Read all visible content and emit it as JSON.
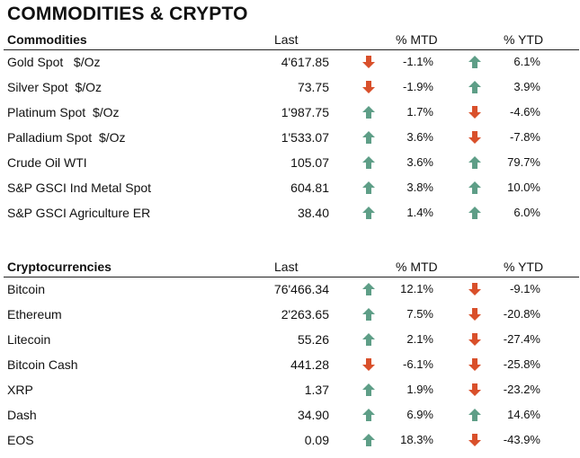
{
  "title": "COMMODITIES & CRYPTO",
  "colors": {
    "up": "#5e9e87",
    "down": "#d9502b"
  },
  "commodities": {
    "header": {
      "name": "Commodities",
      "last": "Last",
      "mtd": "% MTD",
      "ytd": "% YTD"
    },
    "rows": [
      {
        "name": "Gold Spot   $/Oz",
        "last": "4'617.85",
        "mtd": "-1.1%",
        "mtd_dir": "down",
        "ytd": "6.1%",
        "ytd_dir": "up"
      },
      {
        "name": "Silver Spot  $/Oz",
        "last": "73.75",
        "mtd": "-1.9%",
        "mtd_dir": "down",
        "ytd": "3.9%",
        "ytd_dir": "up"
      },
      {
        "name": "Platinum Spot  $/Oz",
        "last": "1'987.75",
        "mtd": "1.7%",
        "mtd_dir": "up",
        "ytd": "-4.6%",
        "ytd_dir": "down"
      },
      {
        "name": "Palladium Spot  $/Oz",
        "last": "1'533.07",
        "mtd": "3.6%",
        "mtd_dir": "up",
        "ytd": "-7.8%",
        "ytd_dir": "down"
      },
      {
        "name": "Crude Oil WTI",
        "last": "105.07",
        "mtd": "3.6%",
        "mtd_dir": "up",
        "ytd": "79.7%",
        "ytd_dir": "up"
      },
      {
        "name": "S&P GSCI Ind Metal Spot",
        "last": "604.81",
        "mtd": "3.8%",
        "mtd_dir": "up",
        "ytd": "10.0%",
        "ytd_dir": "up"
      },
      {
        "name": "S&P GSCI Agriculture ER",
        "last": "38.40",
        "mtd": "1.4%",
        "mtd_dir": "up",
        "ytd": "6.0%",
        "ytd_dir": "up"
      }
    ]
  },
  "crypto": {
    "header": {
      "name": "Cryptocurrencies",
      "last": "Last",
      "mtd": "% MTD",
      "ytd": "% YTD"
    },
    "rows": [
      {
        "name": "Bitcoin",
        "last": "76'466.34",
        "mtd": "12.1%",
        "mtd_dir": "up",
        "ytd": "-9.1%",
        "ytd_dir": "down"
      },
      {
        "name": "Ethereum",
        "last": "2'263.65",
        "mtd": "7.5%",
        "mtd_dir": "up",
        "ytd": "-20.8%",
        "ytd_dir": "down"
      },
      {
        "name": "Litecoin",
        "last": "55.26",
        "mtd": "2.1%",
        "mtd_dir": "up",
        "ytd": "-27.4%",
        "ytd_dir": "down"
      },
      {
        "name": "Bitcoin Cash",
        "last": "441.28",
        "mtd": "-6.1%",
        "mtd_dir": "down",
        "ytd": "-25.8%",
        "ytd_dir": "down"
      },
      {
        "name": "XRP",
        "last": "1.37",
        "mtd": "1.9%",
        "mtd_dir": "up",
        "ytd": "-23.2%",
        "ytd_dir": "down"
      },
      {
        "name": "Dash",
        "last": "34.90",
        "mtd": "6.9%",
        "mtd_dir": "up",
        "ytd": "14.6%",
        "ytd_dir": "up"
      },
      {
        "name": "EOS",
        "last": "0.09",
        "mtd": "18.3%",
        "mtd_dir": "up",
        "ytd": "-43.9%",
        "ytd_dir": "down"
      }
    ]
  }
}
